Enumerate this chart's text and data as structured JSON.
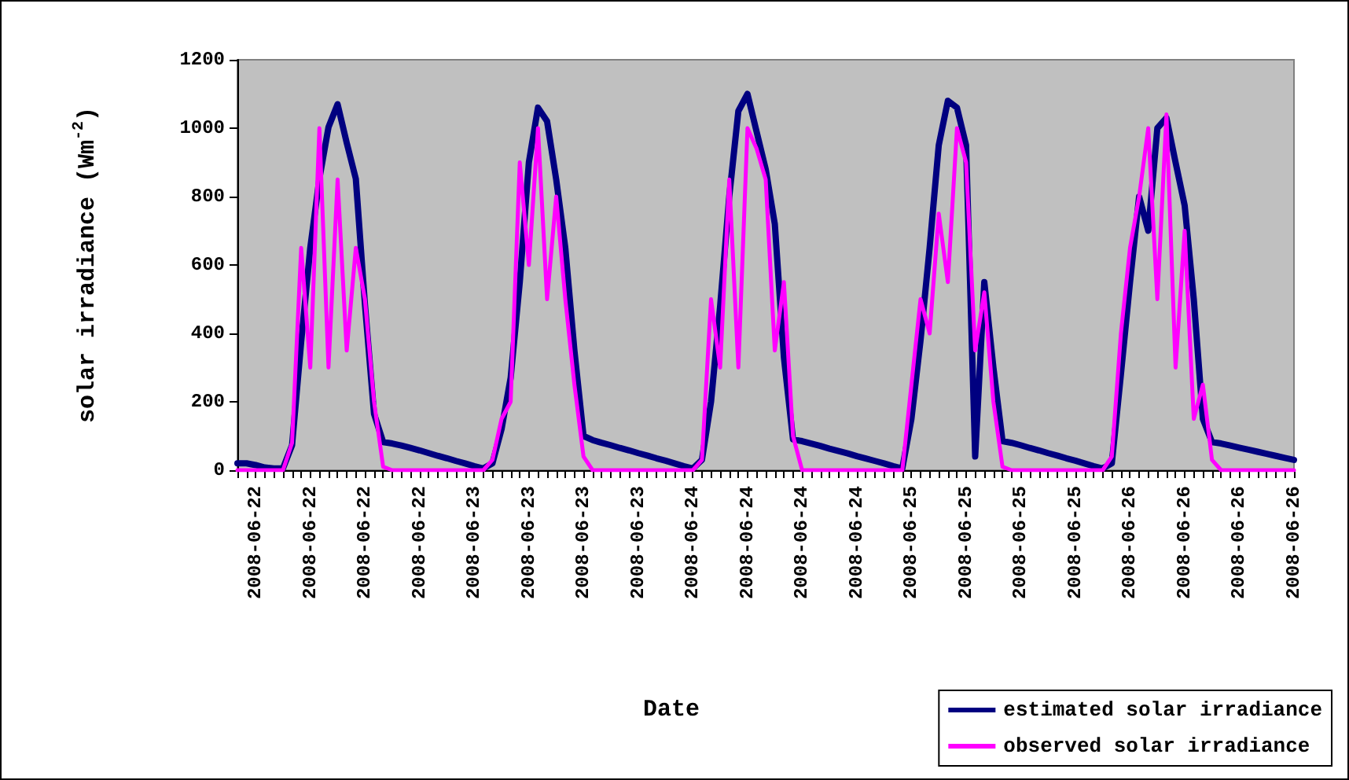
{
  "chart_data": {
    "type": "line",
    "xlabel": "Date",
    "ylabel": "solar irradiance (Wm$^{-2}$)",
    "categories": [
      null,
      null,
      "2008-06-22",
      null,
      null,
      null,
      null,
      null,
      "2008-06-22",
      null,
      null,
      null,
      null,
      null,
      "2008-06-22",
      null,
      null,
      null,
      null,
      null,
      "2008-06-22",
      null,
      null,
      null,
      null,
      null,
      "2008-06-23",
      null,
      null,
      null,
      null,
      null,
      "2008-06-23",
      null,
      null,
      null,
      null,
      null,
      "2008-06-23",
      null,
      null,
      null,
      null,
      null,
      "2008-06-23",
      null,
      null,
      null,
      null,
      null,
      "2008-06-24",
      null,
      null,
      null,
      null,
      null,
      "2008-06-24",
      null,
      null,
      null,
      null,
      null,
      "2008-06-24",
      null,
      null,
      null,
      null,
      null,
      "2008-06-24",
      null,
      null,
      null,
      null,
      null,
      "2008-06-25",
      null,
      null,
      null,
      null,
      null,
      "2008-06-25",
      null,
      null,
      null,
      null,
      null,
      "2008-06-25",
      null,
      null,
      null,
      null,
      null,
      "2008-06-25",
      null,
      null,
      null,
      null,
      null,
      "2008-06-26",
      null,
      null,
      null,
      null,
      null,
      "2008-06-26",
      null,
      null,
      null,
      null,
      null,
      "2008-06-26",
      null,
      null,
      null,
      null,
      null,
      "2008-06-26"
    ],
    "series": [
      {
        "name": "estimated solar irradiance",
        "color": "#000080",
        "values": [
          20,
          20,
          15,
          8,
          5,
          5,
          73,
          375,
          650,
          852,
          1003,
          1070,
          957,
          852,
          485,
          165,
          82,
          78,
          72,
          65,
          58,
          50,
          42,
          35,
          27,
          20,
          12,
          5,
          20,
          120,
          270,
          550,
          900,
          1060,
          1020,
          850,
          650,
          350,
          100,
          88,
          80,
          73,
          65,
          58,
          50,
          43,
          35,
          28,
          20,
          12,
          5,
          30,
          200,
          480,
          800,
          1050,
          1100,
          990,
          880,
          720,
          330,
          90,
          85,
          78,
          71,
          63,
          56,
          49,
          41,
          34,
          27,
          20,
          12,
          5,
          150,
          380,
          650,
          950,
          1080,
          1060,
          950,
          40,
          550,
          300,
          85,
          80,
          73,
          65,
          58,
          50,
          43,
          35,
          28,
          20,
          12,
          5,
          20,
          280,
          550,
          800,
          700,
          1000,
          1030,
          900,
          774,
          500,
          150,
          82,
          78,
          72,
          66,
          60,
          54,
          48,
          42,
          36,
          30
        ]
      },
      {
        "name": "observed solar irradiance",
        "color": "#ff00ff",
        "values": [
          0,
          0,
          0,
          0,
          0,
          0,
          80,
          650,
          300,
          1000,
          300,
          850,
          350,
          650,
          500,
          200,
          10,
          0,
          0,
          0,
          0,
          0,
          0,
          0,
          0,
          0,
          0,
          0,
          30,
          150,
          200,
          900,
          600,
          1000,
          500,
          800,
          500,
          250,
          40,
          0,
          0,
          0,
          0,
          0,
          0,
          0,
          0,
          0,
          0,
          0,
          0,
          30,
          500,
          300,
          850,
          300,
          1000,
          940,
          850,
          350,
          550,
          100,
          0,
          0,
          0,
          0,
          0,
          0,
          0,
          0,
          0,
          0,
          0,
          0,
          250,
          500,
          400,
          750,
          550,
          1000,
          900,
          350,
          520,
          200,
          10,
          0,
          0,
          0,
          0,
          0,
          0,
          0,
          0,
          0,
          0,
          0,
          40,
          400,
          650,
          800,
          1000,
          500,
          1040,
          300,
          700,
          150,
          250,
          30,
          0,
          0,
          0,
          0,
          0,
          0,
          0,
          0,
          0
        ]
      }
    ],
    "ylim": [
      0,
      1200
    ],
    "yticks": [
      0,
      200,
      400,
      600,
      800,
      1000,
      1200
    ],
    "grid": false,
    "legend": "bottom right",
    "marker": "none",
    "line_style": "solid"
  }
}
